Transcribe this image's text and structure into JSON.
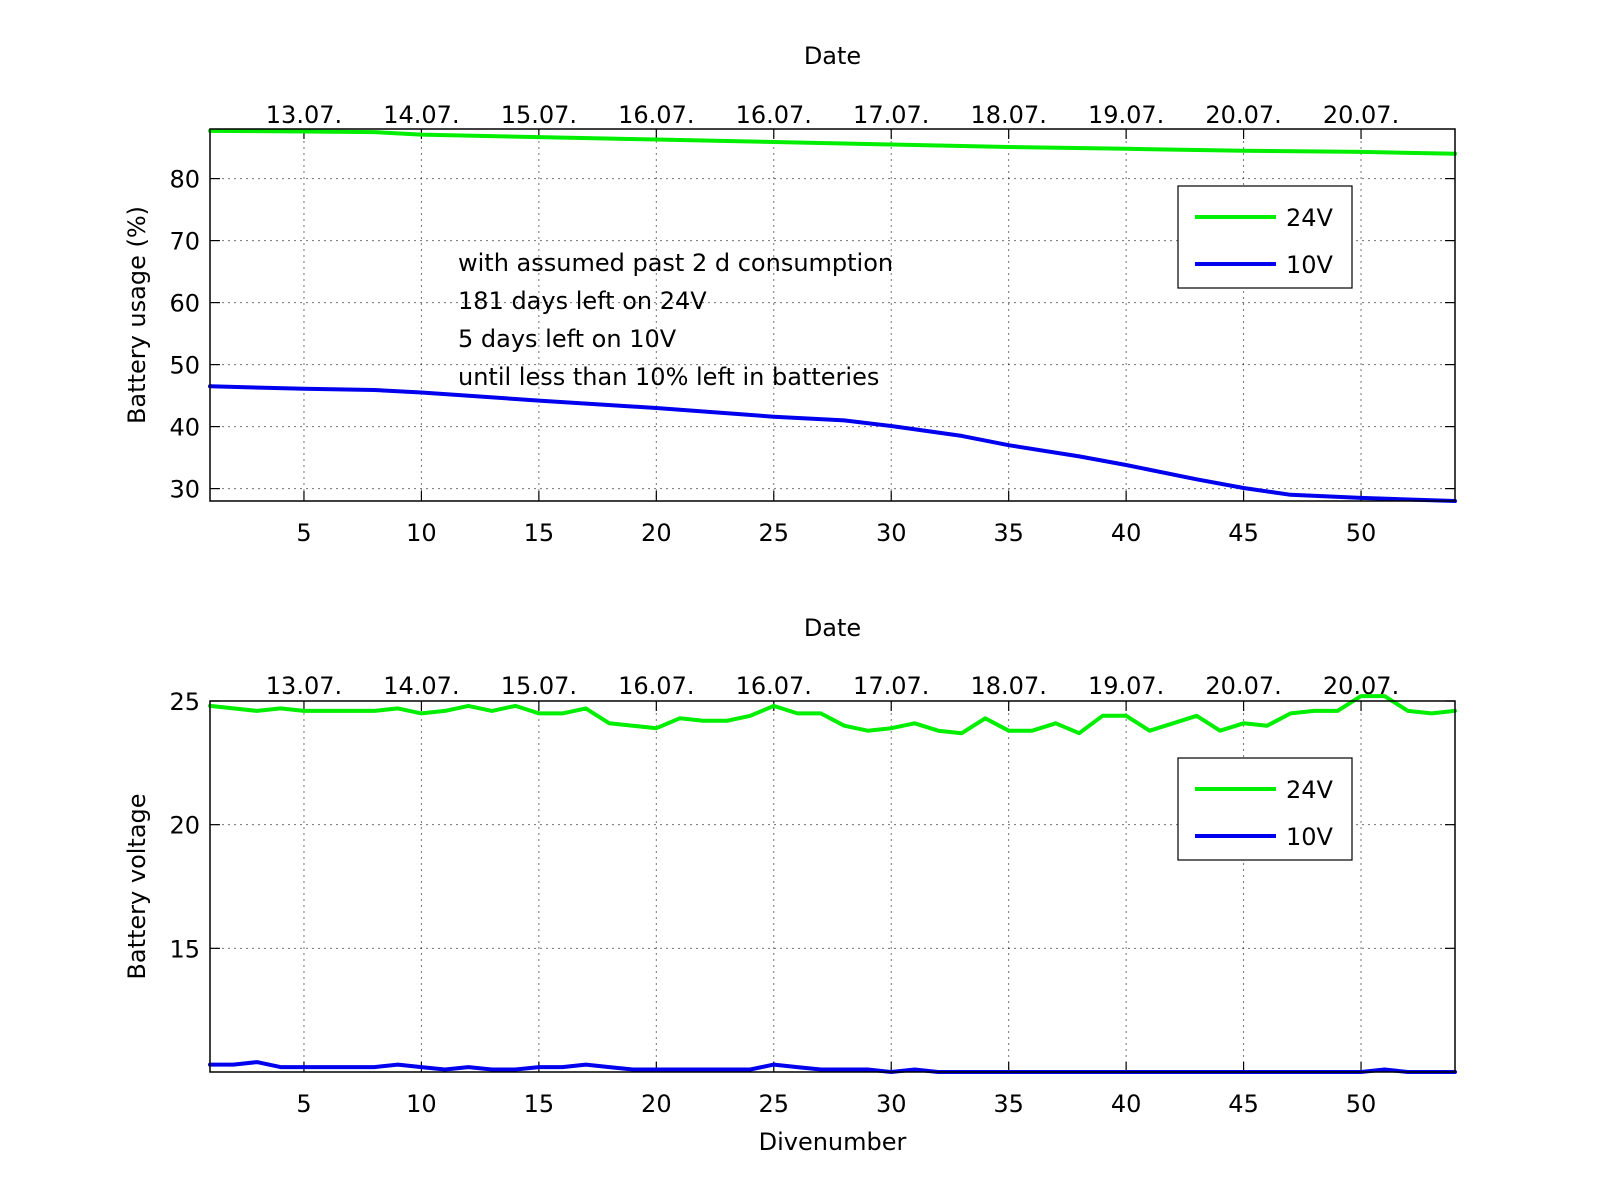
{
  "chart_data": [
    {
      "type": "line",
      "title": "Date",
      "xlabel": "",
      "ylabel": "Battery usage (%)",
      "xlim": [
        1,
        54
      ],
      "ylim": [
        28,
        88
      ],
      "xticks": [
        5,
        10,
        15,
        20,
        25,
        30,
        35,
        40,
        45,
        50
      ],
      "yticks": [
        30,
        40,
        50,
        60,
        70,
        80
      ],
      "top_axis_labels": [
        "13.07.",
        "14.07.",
        "15.07.",
        "16.07.",
        "16.07.",
        "17.07.",
        "18.07.",
        "19.07.",
        "20.07.",
        "20.07."
      ],
      "grid": true,
      "legend_position": "top-right",
      "annotations": [
        "with assumed past 2 d consumption",
        "181 days left on 24V",
        "5 days left on 10V",
        "until less than 10% left in batteries"
      ],
      "series": [
        {
          "name": "24V",
          "color": "#00ee00",
          "x": [
            1,
            5,
            8,
            10,
            15,
            20,
            25,
            30,
            35,
            40,
            45,
            50,
            54
          ],
          "y": [
            87.7,
            87.6,
            87.5,
            87.1,
            86.7,
            86.3,
            85.9,
            85.5,
            85.1,
            84.8,
            84.5,
            84.3,
            84.0
          ]
        },
        {
          "name": "10V",
          "color": "#0000ee",
          "x": [
            1,
            5,
            8,
            10,
            15,
            20,
            25,
            28,
            30,
            33,
            35,
            38,
            40,
            43,
            45,
            47,
            50,
            54
          ],
          "y": [
            46.5,
            46.1,
            45.9,
            45.5,
            44.2,
            43.0,
            41.6,
            41.0,
            40.1,
            38.5,
            37.0,
            35.2,
            33.8,
            31.5,
            30.1,
            29.0,
            28.5,
            28.0
          ]
        }
      ]
    },
    {
      "type": "line",
      "title": "Date",
      "xlabel": "Divenumber",
      "ylabel": "Battery voltage",
      "xlim": [
        1,
        54
      ],
      "ylim": [
        10,
        25
      ],
      "xticks": [
        5,
        10,
        15,
        20,
        25,
        30,
        35,
        40,
        45,
        50
      ],
      "yticks": [
        15,
        20,
        25
      ],
      "top_axis_labels": [
        "13.07.",
        "14.07.",
        "15.07.",
        "16.07.",
        "16.07.",
        "17.07.",
        "18.07.",
        "19.07.",
        "20.07.",
        "20.07."
      ],
      "grid": true,
      "legend_position": "top-right",
      "series": [
        {
          "name": "24V",
          "color": "#00ee00",
          "x": [
            1,
            2,
            3,
            4,
            5,
            6,
            7,
            8,
            9,
            10,
            11,
            12,
            13,
            14,
            15,
            16,
            17,
            18,
            19,
            20,
            21,
            22,
            23,
            24,
            25,
            26,
            27,
            28,
            29,
            30,
            31,
            32,
            33,
            34,
            35,
            36,
            37,
            38,
            39,
            40,
            41,
            42,
            43,
            44,
            45,
            46,
            47,
            48,
            49,
            50,
            51,
            52,
            53,
            54
          ],
          "y": [
            24.8,
            24.7,
            24.6,
            24.7,
            24.6,
            24.6,
            24.6,
            24.6,
            24.7,
            24.5,
            24.6,
            24.8,
            24.6,
            24.8,
            24.5,
            24.5,
            24.7,
            24.1,
            24.0,
            23.9,
            24.3,
            24.2,
            24.2,
            24.4,
            24.8,
            24.5,
            24.5,
            24.0,
            23.8,
            23.9,
            24.1,
            23.8,
            23.7,
            24.3,
            23.8,
            23.8,
            24.1,
            23.7,
            24.4,
            24.4,
            23.8,
            24.1,
            24.4,
            23.8,
            24.1,
            24.0,
            24.5,
            24.6,
            24.6,
            25.2,
            25.2,
            24.6,
            24.5,
            24.6
          ]
        },
        {
          "name": "10V",
          "color": "#0000ee",
          "x": [
            1,
            2,
            3,
            4,
            5,
            6,
            7,
            8,
            9,
            10,
            11,
            12,
            13,
            14,
            15,
            16,
            17,
            18,
            19,
            20,
            21,
            22,
            23,
            24,
            25,
            26,
            27,
            28,
            29,
            30,
            31,
            32,
            33,
            34,
            35,
            36,
            37,
            38,
            39,
            40,
            41,
            42,
            43,
            44,
            45,
            46,
            47,
            48,
            49,
            50,
            51,
            52,
            53,
            54
          ],
          "y": [
            10.3,
            10.3,
            10.4,
            10.2,
            10.2,
            10.2,
            10.2,
            10.2,
            10.3,
            10.2,
            10.1,
            10.2,
            10.1,
            10.1,
            10.2,
            10.2,
            10.3,
            10.2,
            10.1,
            10.1,
            10.1,
            10.1,
            10.1,
            10.1,
            10.3,
            10.2,
            10.1,
            10.1,
            10.1,
            10.0,
            10.1,
            10.0,
            10.0,
            10.0,
            10.0,
            10.0,
            10.0,
            10.0,
            10.0,
            10.0,
            10.0,
            10.0,
            10.0,
            10.0,
            10.0,
            10.0,
            10.0,
            10.0,
            10.0,
            10.0,
            10.1,
            10.0,
            10.0,
            10.0
          ]
        }
      ]
    }
  ]
}
